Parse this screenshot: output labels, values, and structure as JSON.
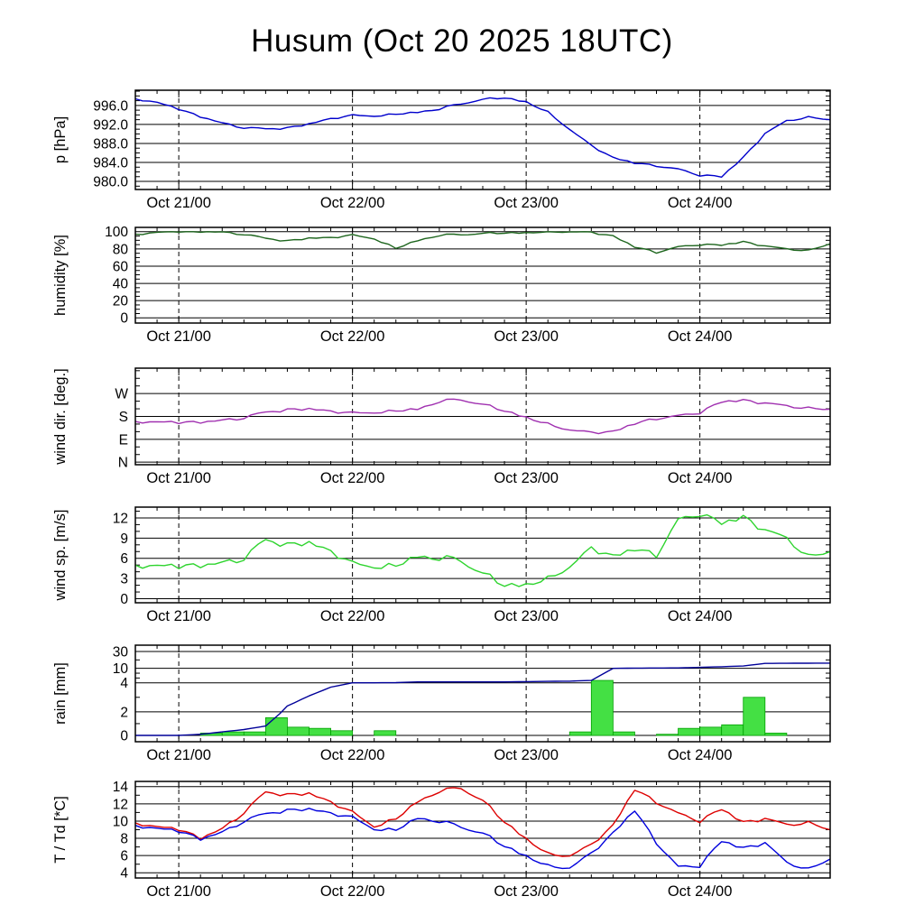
{
  "title": "Husum (Oct 20 2025 18UTC)",
  "chart_data": {
    "type": "line",
    "title": "Husum (Oct 20 2025 18UTC)",
    "background": "#ffffff",
    "axis_color": "#000000",
    "x": {
      "start_hour": 0,
      "end_hour": 96,
      "minor_step": 3,
      "tick_hours": [
        6,
        30,
        54,
        78
      ],
      "tick_labels": [
        "Oct 21/00",
        "Oct 22/00",
        "Oct 23/00",
        "Oct 24/00"
      ]
    },
    "sample_hours": [
      0,
      3,
      6,
      9,
      12,
      15,
      18,
      21,
      24,
      27,
      30,
      33,
      36,
      39,
      42,
      45,
      48,
      51,
      54,
      57,
      60,
      63,
      66,
      69,
      72,
      75,
      78,
      81,
      84,
      87,
      90,
      93,
      96
    ],
    "panels": [
      {
        "id": "pressure",
        "ylabel": "p [hPa]",
        "yticks": [
          980,
          984,
          988,
          992,
          996
        ],
        "ytick_labels": [
          "980.0",
          "984.0",
          "988.0",
          "992.0",
          "996.0"
        ],
        "yminors": [
          979,
          981,
          982,
          983,
          985,
          986,
          987,
          989,
          990,
          991,
          993,
          994,
          995,
          997,
          998,
          999
        ],
        "scale": {
          "values": [
            978.3,
            999.2
          ],
          "fracs": [
            0,
            1
          ]
        },
        "series": [
          {
            "name": "pressure",
            "color": "#0000cc",
            "values": [
              997.4,
              996.6,
              995.2,
              993.6,
              992.2,
              991.3,
              991.0,
              991.2,
              992.0,
              993.2,
              993.9,
              993.8,
              994.2,
              994.6,
              995.3,
              996.4,
              997.3,
              997.7,
              996.8,
              994.6,
              991.0,
              987.5,
              985.0,
              983.8,
              983.3,
              982.5,
              981.3,
              980.9,
              985.0,
              990.0,
              992.8,
              993.5,
              993.0
            ]
          }
        ]
      },
      {
        "id": "humidity",
        "ylabel": "humidity [%]",
        "yticks": [
          0,
          20,
          40,
          60,
          80,
          100
        ],
        "ytick_labels": [
          "0",
          "20",
          "40",
          "60",
          "80",
          "100"
        ],
        "yminors": [
          5,
          10,
          15,
          25,
          30,
          35,
          45,
          50,
          55,
          65,
          70,
          75,
          85,
          90,
          95
        ],
        "scale": {
          "values": [
            -6,
            105
          ],
          "fracs": [
            0,
            1
          ]
        },
        "series": [
          {
            "name": "humidity",
            "color": "#1e661e",
            "clip": [
              0,
              100
            ],
            "values": [
              97,
              99,
              100,
              100,
              99,
              97,
              92,
              89,
              92,
              93,
              96,
              92,
              81,
              90,
              96,
              97,
              98,
              99,
              99,
              100,
              100,
              99,
              95,
              82,
              76,
              82,
              85,
              84,
              88,
              83,
              80,
              78,
              86
            ]
          }
        ]
      },
      {
        "id": "wind_dir",
        "ylabel": "wind dir. [deg.]",
        "yticks": [
          0,
          90,
          180,
          270
        ],
        "ytick_labels": [
          "N",
          "E",
          "S",
          "W"
        ],
        "yminors": [
          30,
          60,
          120,
          150,
          210,
          240,
          300,
          330,
          360
        ],
        "scale": {
          "values": [
            -10,
            370
          ],
          "fracs": [
            0,
            1
          ]
        },
        "series": [
          {
            "name": "wind_dir",
            "color": "#a030b0",
            "clip": [
              0,
              360
            ],
            "values": [
              160,
              157,
              155,
              157,
              162,
              175,
              195,
              205,
              207,
              200,
              193,
              196,
              203,
              210,
              240,
              248,
              228,
              205,
              178,
              150,
              128,
              115,
              120,
              150,
              172,
              180,
              195,
              235,
              242,
              230,
              222,
              212,
              208
            ]
          }
        ]
      },
      {
        "id": "wind_speed",
        "ylabel": "wind sp. [m/s]",
        "yticks": [
          0,
          3,
          6,
          9,
          12
        ],
        "ytick_labels": [
          "0",
          "3",
          "6",
          "9",
          "12"
        ],
        "yminors": [
          1,
          2,
          4,
          5,
          7,
          8,
          10,
          11,
          13
        ],
        "scale": {
          "values": [
            -0.6,
            13.6
          ],
          "fracs": [
            0,
            1
          ]
        },
        "series": [
          {
            "name": "wind_speed",
            "color": "#2ed42e",
            "clip": [
              0.2,
              13.3
            ],
            "values": [
              5.0,
              4.8,
              4.7,
              4.9,
              5.1,
              6.0,
              8.6,
              7.9,
              8.1,
              7.0,
              5.2,
              4.8,
              5.0,
              6.4,
              6.1,
              5.8,
              3.8,
              2.2,
              2.2,
              3.0,
              4.8,
              7.4,
              6.3,
              7.2,
              6.5,
              11.5,
              12.6,
              11.0,
              12.0,
              10.0,
              9.0,
              6.2,
              7.0
            ]
          }
        ]
      },
      {
        "id": "rain",
        "ylabel": "rain [mm]",
        "yticks": [
          0,
          2,
          4,
          10,
          30
        ],
        "ytick_labels": [
          "0",
          "2",
          "4",
          "10",
          "30"
        ],
        "yminors": [
          1,
          3,
          6,
          8,
          20
        ],
        "scale": {
          "values": [
            0,
            2,
            4,
            10,
            30,
            45
          ],
          "fracs": [
            0.065,
            0.31,
            0.61,
            0.76,
            0.935,
            1.0
          ]
        },
        "bars": {
          "fill": "#44e044",
          "stroke": "#00a000",
          "width_hours": 3,
          "entries": [
            [
              9,
              0.2
            ],
            [
              12,
              0.3
            ],
            [
              15,
              0.3
            ],
            [
              18,
              1.5
            ],
            [
              21,
              0.7
            ],
            [
              24,
              0.6
            ],
            [
              27,
              0.4
            ],
            [
              33,
              0.4
            ],
            [
              60,
              0.3
            ],
            [
              63,
              5.0
            ],
            [
              66,
              0.3
            ],
            [
              72,
              0.1
            ],
            [
              75,
              0.6
            ],
            [
              78,
              0.7
            ],
            [
              81,
              0.9
            ],
            [
              84,
              3.0
            ],
            [
              87,
              0.2
            ]
          ]
        },
        "series": [
          {
            "name": "rain_accum",
            "color": "#000099",
            "values": [
              0,
              0,
              0,
              0.1,
              0.3,
              0.5,
              0.8,
              2.4,
              3.1,
              3.7,
              4.0,
              4.0,
              4.1,
              4.4,
              4.4,
              4.4,
              4.4,
              4.4,
              4.5,
              4.6,
              4.7,
              5.0,
              10.0,
              10.3,
              10.4,
              10.5,
              11.2,
              11.9,
              12.8,
              15.8,
              16.0,
              16.1,
              16.2
            ]
          }
        ]
      },
      {
        "id": "temperature",
        "ylabel": "T / Td [*C]",
        "yticks": [
          4,
          6,
          8,
          10,
          12,
          14
        ],
        "ytick_labels": [
          "4",
          "6",
          "8",
          "10",
          "12",
          "14"
        ],
        "yminors": [
          5,
          7,
          9,
          11,
          13
        ],
        "scale": {
          "values": [
            3.4,
            14.6
          ],
          "fracs": [
            0,
            1
          ]
        },
        "series": [
          {
            "name": "temperature",
            "color": "#dd0000",
            "values": [
              9.8,
              9.3,
              9.0,
              8.0,
              9.0,
              11.0,
              13.3,
              13.0,
              13.1,
              12.2,
              11.0,
              9.4,
              10.3,
              12.3,
              13.5,
              13.9,
              12.4,
              10.0,
              8.0,
              6.2,
              6.0,
              7.2,
              9.5,
              13.6,
              12.2,
              10.8,
              10.0,
              11.3,
              9.8,
              10.2,
              9.6,
              9.8,
              9.0
            ]
          },
          {
            "name": "dewpoint",
            "color": "#0000dd",
            "values": [
              9.5,
              9.1,
              8.8,
              7.9,
              8.6,
              10.0,
              10.8,
              11.2,
              11.3,
              10.9,
              10.4,
              9.1,
              9.0,
              10.4,
              10.0,
              9.4,
              8.6,
              7.2,
              6.0,
              4.8,
              4.6,
              6.2,
              8.6,
              11.2,
              7.5,
              4.6,
              4.8,
              7.6,
              6.8,
              7.4,
              5.2,
              4.4,
              5.6
            ]
          }
        ]
      }
    ]
  }
}
